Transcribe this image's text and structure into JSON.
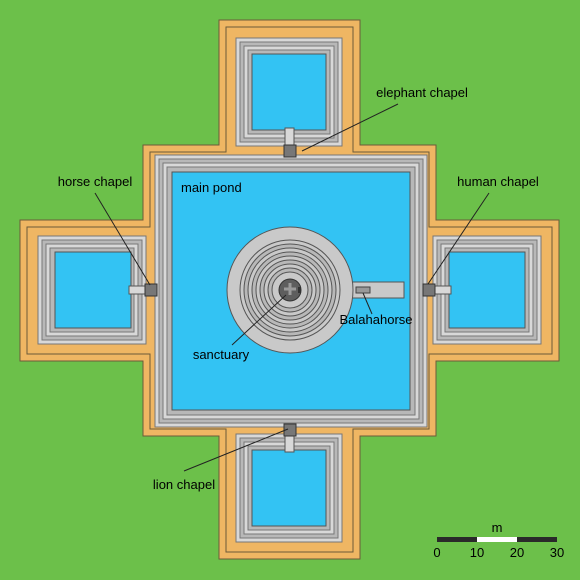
{
  "colors": {
    "grass": "#6cc04a",
    "terrace": "#efb663",
    "step_gray": "#a8a8a8",
    "step_light": "#d8d8d8",
    "water": "#33c3f3",
    "stone": "#c9c9c9",
    "dark_stone": "#6f6f6f",
    "line": "#222222"
  },
  "labels": {
    "elephant_chapel": "elephant chapel",
    "horse_chapel": "horse chapel",
    "human_chapel": "human chapel",
    "main_pond": "main pond",
    "balahahorse": "Balahahorse",
    "sanctuary": "sanctuary",
    "lion_chapel": "lion chapel"
  },
  "scale_bar": {
    "unit": "m",
    "ticks": [
      "0",
      "10",
      "20",
      "30"
    ]
  }
}
